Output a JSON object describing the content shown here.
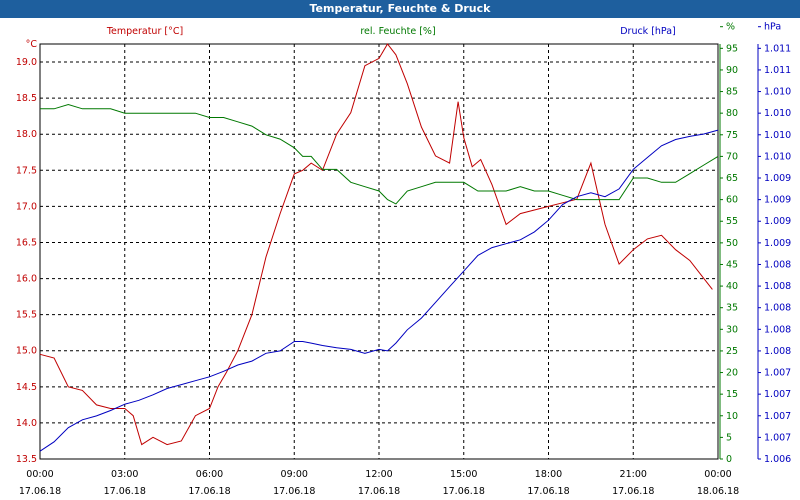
{
  "window": {
    "title": "Temperatur, Feuchte & Druck"
  },
  "colors": {
    "titlebar": "#1e5f9e",
    "temperature": "#c00000",
    "humidity": "#007800",
    "pressure": "#0000c0",
    "grid": "#000000"
  },
  "chart_data": {
    "type": "line",
    "grid": true,
    "legend": "top",
    "x_ticks": [
      {
        "time": "00:00",
        "date": "17.06.18"
      },
      {
        "time": "03:00",
        "date": "17.06.18"
      },
      {
        "time": "06:00",
        "date": "17.06.18"
      },
      {
        "time": "09:00",
        "date": "17.06.18"
      },
      {
        "time": "12:00",
        "date": "17.06.18"
      },
      {
        "time": "15:00",
        "date": "17.06.18"
      },
      {
        "time": "18:00",
        "date": "17.06.18"
      },
      {
        "time": "21:00",
        "date": "17.06.18"
      },
      {
        "time": "00:00",
        "date": "18.06.18"
      }
    ],
    "xlim": [
      0,
      24
    ],
    "axes": {
      "left": {
        "unit": "°C",
        "ylim": [
          13.5,
          19.25
        ],
        "ticks": [
          "13.5",
          "14.0",
          "14.5",
          "15.0",
          "15.5",
          "16.0",
          "16.5",
          "17.0",
          "17.5",
          "18.0",
          "18.5",
          "19.0"
        ]
      },
      "humidity": {
        "unit": "%",
        "ylim": [
          0,
          96
        ],
        "ticks": [
          "0",
          "5",
          "10",
          "15",
          "20",
          "25",
          "30",
          "35",
          "40",
          "45",
          "50",
          "55",
          "60",
          "65",
          "70",
          "75",
          "80",
          "85",
          "90",
          "95",
          "%"
        ]
      },
      "pressure": {
        "unit": "hPa",
        "ticks": [
          "1.006",
          "1.007",
          "1.007",
          "1.007",
          "1.007",
          "1.008",
          "1.008",
          "1.008",
          "1.008",
          "1.008",
          "1.009",
          "1.009",
          "1.009",
          "1.009",
          "1.010",
          "1.010",
          "1.010",
          "1.010",
          "1.011",
          "1.011",
          "hPa"
        ]
      }
    },
    "series": [
      {
        "name": "Temperatur [°C]",
        "axis": "left",
        "x": [
          0,
          0.5,
          1,
          1.5,
          2,
          2.5,
          3,
          3.3,
          3.6,
          4,
          4.5,
          5,
          5.5,
          6,
          6.3,
          6.6,
          7,
          7.5,
          8,
          8.5,
          9,
          9.3,
          9.6,
          10,
          10.5,
          11,
          11.5,
          12,
          12.3,
          12.6,
          13,
          13.5,
          14,
          14.5,
          14.8,
          15,
          15.3,
          15.6,
          16,
          16.5,
          17,
          17.5,
          18,
          18.5,
          19,
          19.5,
          20,
          20.5,
          21,
          21.5,
          22,
          22.5,
          23,
          23.5,
          23.8
        ],
        "values": [
          14.95,
          14.9,
          14.5,
          14.45,
          14.25,
          14.2,
          14.2,
          14.1,
          13.7,
          13.8,
          13.7,
          13.75,
          14.1,
          14.2,
          14.5,
          14.7,
          15.0,
          15.5,
          16.3,
          16.9,
          17.45,
          17.5,
          17.6,
          17.5,
          18.0,
          18.3,
          18.95,
          19.05,
          19.25,
          19.1,
          18.7,
          18.1,
          17.7,
          17.6,
          18.45,
          17.95,
          17.55,
          17.65,
          17.3,
          16.75,
          16.9,
          16.95,
          17.0,
          17.05,
          17.1,
          17.6,
          16.75,
          16.2,
          16.4,
          16.55,
          16.6,
          16.4,
          16.25,
          16.0,
          15.85
        ]
      },
      {
        "name": "rel. Feuchte [%]",
        "axis": "humidity",
        "x": [
          0,
          0.5,
          1,
          1.5,
          2,
          2.5,
          3,
          3.5,
          4,
          4.5,
          5,
          5.5,
          6,
          6.5,
          7,
          7.5,
          8,
          8.5,
          9,
          9.3,
          9.6,
          10,
          10.5,
          11,
          11.5,
          12,
          12.3,
          12.6,
          13,
          13.5,
          14,
          14.5,
          15,
          15.5,
          16,
          16.5,
          17,
          17.5,
          18,
          18.5,
          19,
          19.5,
          20,
          20.5,
          21,
          21.5,
          22,
          22.5,
          23,
          23.5,
          24
        ],
        "values": [
          81,
          81,
          82,
          81,
          81,
          81,
          80,
          80,
          80,
          80,
          80,
          80,
          79,
          79,
          78,
          77,
          75,
          74,
          72,
          70,
          70,
          67,
          67,
          64,
          63,
          62,
          60,
          59,
          62,
          63,
          64,
          64,
          64,
          62,
          62,
          62,
          63,
          62,
          62,
          61,
          60,
          60,
          60,
          60,
          65,
          65,
          64,
          64,
          66,
          68,
          70
        ]
      },
      {
        "name": "Druck [hPa]",
        "axis": "pressure",
        "x": [
          0,
          0.5,
          1,
          1.5,
          2,
          2.5,
          3,
          3.5,
          4,
          4.5,
          5,
          5.5,
          6,
          6.5,
          7,
          7.5,
          8,
          8.5,
          9,
          9.3,
          9.6,
          10,
          10.5,
          11,
          11.5,
          12,
          12.3,
          12.6,
          13,
          13.5,
          14,
          14.5,
          15,
          15.5,
          16,
          16.5,
          17,
          17.5,
          18,
          18.5,
          19,
          19.5,
          20,
          20.5,
          21,
          21.5,
          22,
          22.5,
          23,
          23.5,
          24
        ],
        "values": [
          1.0062,
          1.00632,
          1.0065,
          1.0066,
          1.00665,
          1.00672,
          1.0068,
          1.00685,
          1.00692,
          1.007,
          1.00705,
          1.0071,
          1.00715,
          1.00722,
          1.0073,
          1.00735,
          1.00745,
          1.00748,
          1.0076,
          1.0076,
          1.00758,
          1.00755,
          1.00752,
          1.0075,
          1.00745,
          1.0075,
          1.00748,
          1.00758,
          1.00775,
          1.0079,
          1.0081,
          1.0083,
          1.0085,
          1.0087,
          1.0088,
          1.00885,
          1.0089,
          1.009,
          1.00915,
          1.00935,
          1.00945,
          1.0095,
          1.00945,
          1.00955,
          1.0098,
          1.00995,
          1.0101,
          1.01018,
          1.01022,
          1.01025,
          1.0103
        ]
      }
    ]
  }
}
